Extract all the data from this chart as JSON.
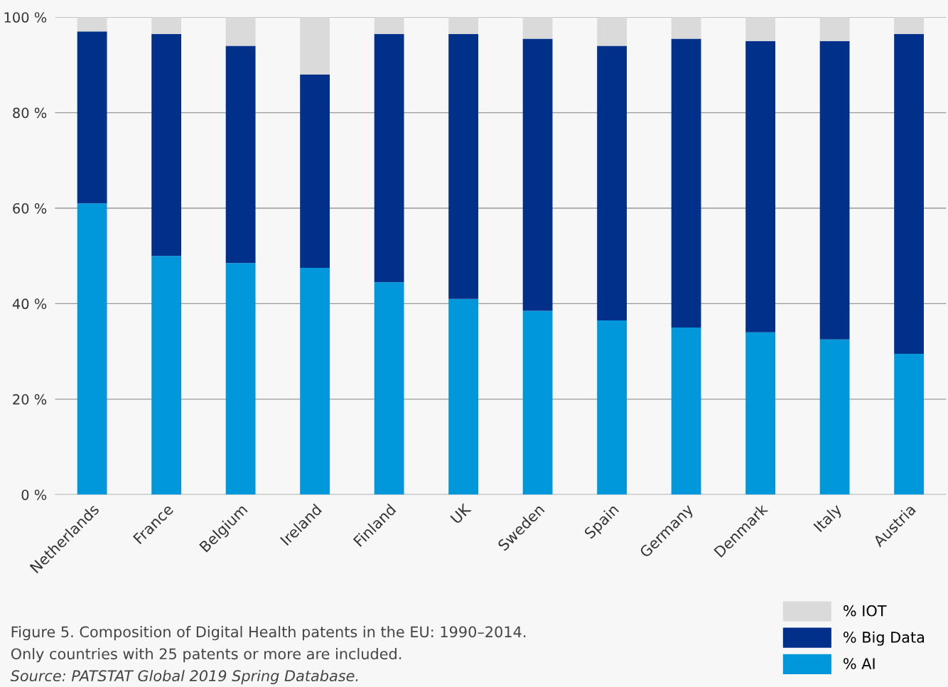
{
  "chart_data": {
    "type": "bar",
    "stacked": true,
    "categories": [
      "Netherlands",
      "France",
      "Belgium",
      "Ireland",
      "Finland",
      "UK",
      "Sweden",
      "Spain",
      "Germany",
      "Denmark",
      "Italy",
      "Austria"
    ],
    "series": [
      {
        "name": "% AI",
        "color": "#0098db",
        "values": [
          61,
          50,
          48.5,
          47.5,
          44.5,
          41,
          38.5,
          36.5,
          35,
          34,
          32.5,
          29.5
        ]
      },
      {
        "name": "% Big Data",
        "color": "#00308a",
        "values": [
          36,
          46.5,
          45.5,
          40.5,
          52,
          55.5,
          57,
          57.5,
          60.5,
          61,
          62.5,
          67
        ]
      },
      {
        "name": "% IOT",
        "color": "#dadada",
        "values": [
          3,
          3.5,
          6,
          12,
          3.5,
          3.5,
          4.5,
          6,
          4.5,
          5,
          5,
          3.5
        ]
      }
    ],
    "ylim": [
      0,
      100
    ],
    "yticks": [
      {
        "value": 0,
        "label": "0 %"
      },
      {
        "value": 20,
        "label": "20 %"
      },
      {
        "value": 40,
        "label": "40 %"
      },
      {
        "value": 60,
        "label": "60 %"
      },
      {
        "value": 80,
        "label": "80 %"
      },
      {
        "value": 100,
        "label": "100 %"
      }
    ],
    "grid": "y",
    "legend": "bottom right",
    "annotations": [
      "Figure 5. Composition of Digital Health patents in the EU: 1990–2014.",
      "Only countries with 25 patents or more are included.",
      "Source: PATSTAT Global 2019 Spring Database."
    ]
  }
}
